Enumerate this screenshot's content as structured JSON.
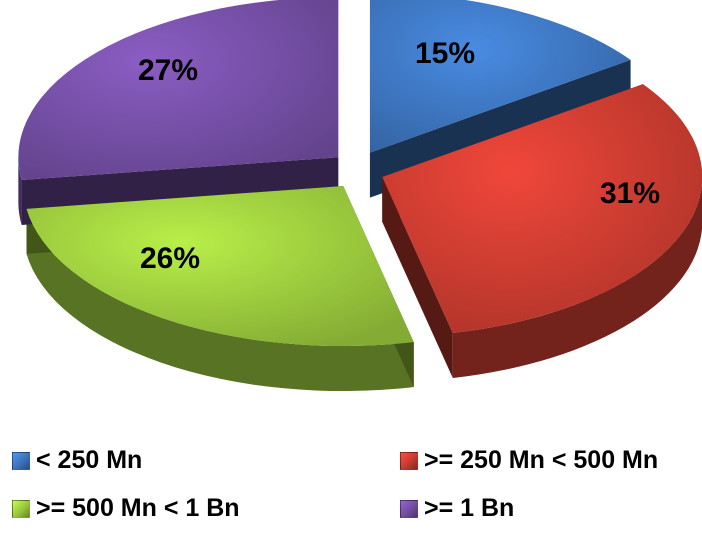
{
  "chart_data": {
    "type": "pie",
    "title": "",
    "exploded": true,
    "three_d": true,
    "legend_position": "bottom",
    "slices": [
      {
        "name": "< 250 Mn",
        "value": 15,
        "label": "15%",
        "color": "#3a6fb5"
      },
      {
        "name": ">= 250 Mn < 500 Mn",
        "value": 31,
        "label": "31%",
        "color": "#c0392e"
      },
      {
        "name": ">= 500 Mn < 1 Bn",
        "value": 26,
        "label": "26%",
        "color": "#93bf3a"
      },
      {
        "name": ">= 1 Bn",
        "value": 27,
        "label": "27%",
        "color": "#6e4a9c"
      }
    ]
  }
}
